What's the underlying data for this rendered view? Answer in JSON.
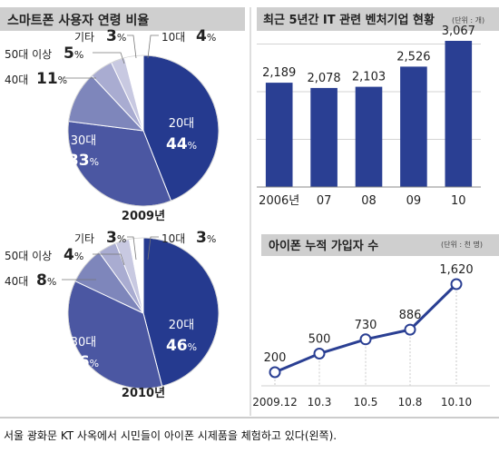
{
  "pie_title": "스마트폰 사용자 연령 비율",
  "bar_title": "최근 5년간 IT 관련 벤처기업 현황",
  "bar_unit": "(단위 : 개)",
  "line_title": "아이폰 누적 가입자 수",
  "line_unit": "(단위 : 천 명)",
  "caption": "서울 광화문 KT 사옥에서 시민들이 아이폰 시제품을 체험하고 있다(왼쪽).",
  "colors": {
    "header_band": "#cfcfcf",
    "bar": "#2a3f93",
    "line": "#2a3f93",
    "pie": [
      "#253a8f",
      "#4b57a2",
      "#7e86bb",
      "#a9acd1",
      "#c8c9e1",
      "#ffffff"
    ]
  },
  "chart_data": [
    {
      "type": "pie",
      "title": "2009년",
      "slices": [
        {
          "name": "20대",
          "value": 44
        },
        {
          "name": "30대",
          "value": 33
        },
        {
          "name": "40대",
          "value": 11
        },
        {
          "name": "50대 이상",
          "value": 5
        },
        {
          "name": "기타",
          "value": 3
        },
        {
          "name": "10대",
          "value": 4
        }
      ]
    },
    {
      "type": "pie",
      "title": "2010년",
      "slices": [
        {
          "name": "20대",
          "value": 46
        },
        {
          "name": "30대",
          "value": 36
        },
        {
          "name": "40대",
          "value": 8
        },
        {
          "name": "50대 이상",
          "value": 4
        },
        {
          "name": "기타",
          "value": 3
        },
        {
          "name": "10대",
          "value": 3
        }
      ]
    },
    {
      "type": "bar",
      "categories": [
        "2006년",
        "07",
        "08",
        "09",
        "10"
      ],
      "values": [
        2189,
        2078,
        2103,
        2526,
        3067
      ],
      "value_labels": [
        "2,189",
        "2,078",
        "2,103",
        "2,526",
        "3,067"
      ],
      "ylim": [
        0,
        3200
      ],
      "grid": true
    },
    {
      "type": "line",
      "x": [
        "2009.12",
        "10.3",
        "10.5",
        "10.8",
        "10.10"
      ],
      "values": [
        200,
        500,
        730,
        886,
        1620
      ],
      "value_labels": [
        "200",
        "500",
        "730",
        "886",
        "1,620"
      ],
      "ylim": [
        0,
        1800
      ]
    }
  ]
}
